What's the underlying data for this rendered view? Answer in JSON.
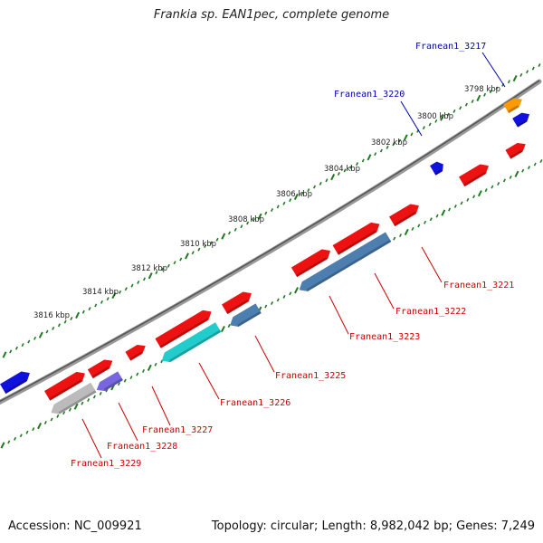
{
  "header": {
    "title": "Frankia sp. EAN1pec, complete genome"
  },
  "footer": {
    "accession": "Accession: NC_009921",
    "topology": "Topology: circular; Length: 8,982,042 bp; Genes: 7,249"
  },
  "colors": {
    "backbone": "#888888",
    "tick": "#1f7a1f",
    "label_red": "#cc0000",
    "label_blue": "#0000bb",
    "gene_red": "#ee1111",
    "gene_blue": "#1111dd",
    "gene_orange": "#ff9900",
    "gene_cyan": "#22cccc",
    "gene_steel": "#4d7eb0",
    "gene_gray": "#bbbbbb",
    "gene_purple": "#7766dd"
  },
  "scale": {
    "unit": "kbp",
    "ticks": [
      "3798 kbp",
      "3800 kbp",
      "3802 kbp",
      "3804 kbp",
      "3806 kbp",
      "3808 kbp",
      "3810 kbp",
      "3812 kbp",
      "3814 kbp",
      "3816 kbp"
    ]
  },
  "genes": [
    {
      "name": "",
      "color": "gene_blue",
      "strand": "forward",
      "track": "outer"
    },
    {
      "name": "Franean1_3229",
      "color": "gene_red",
      "strand": "forward",
      "track": "inner"
    },
    {
      "name": "Franean1_3229",
      "color": "gene_gray",
      "strand": "reverse",
      "track": "inner2",
      "labeled": true
    },
    {
      "name": "",
      "color": "gene_red",
      "strand": "forward",
      "track": "inner"
    },
    {
      "name": "Franean1_3228",
      "color": "gene_purple",
      "strand": "reverse",
      "track": "inner2",
      "labeled": true
    },
    {
      "name": "Franean1_3227",
      "color": "gene_red",
      "strand": "forward",
      "track": "inner",
      "labeled": true
    },
    {
      "name": "",
      "color": "gene_red",
      "strand": "forward",
      "track": "inner"
    },
    {
      "name": "Franean1_3226",
      "color": "gene_cyan",
      "strand": "reverse",
      "track": "inner2",
      "labeled": true
    },
    {
      "name": "",
      "color": "gene_red",
      "strand": "forward",
      "track": "inner"
    },
    {
      "name": "Franean1_3225",
      "color": "gene_steel",
      "strand": "reverse",
      "track": "inner2",
      "labeled": true
    },
    {
      "name": "",
      "color": "gene_red",
      "strand": "forward",
      "track": "inner"
    },
    {
      "name": "",
      "color": "gene_red",
      "strand": "forward",
      "track": "inner"
    },
    {
      "name": "Franean1_3223",
      "color": "gene_steel",
      "strand": "reverse",
      "track": "inner2",
      "labeled": true
    },
    {
      "name": "Franean1_3222",
      "color": "gene_red",
      "strand": "forward",
      "track": "inner",
      "labeled": true
    },
    {
      "name": "Franean1_3221",
      "color": "gene_red",
      "strand": "forward",
      "track": "inner",
      "labeled": true
    },
    {
      "name": "Franean1_3220",
      "color": "gene_blue",
      "strand": "forward",
      "track": "outer",
      "labeled": true
    },
    {
      "name": "",
      "color": "gene_red",
      "strand": "forward",
      "track": "inner"
    },
    {
      "name": "Franean1_3217",
      "color": "gene_orange",
      "strand": "forward",
      "track": "outer",
      "labeled": true
    },
    {
      "name": "",
      "color": "gene_blue",
      "strand": "forward",
      "track": "outer"
    }
  ],
  "labels": [
    {
      "text": "Franean1_3217",
      "color": "label_blue"
    },
    {
      "text": "Franean1_3220",
      "color": "label_blue"
    },
    {
      "text": "Franean1_3221",
      "color": "label_red"
    },
    {
      "text": "Franean1_3222",
      "color": "label_red"
    },
    {
      "text": "Franean1_3223",
      "color": "label_red"
    },
    {
      "text": "Franean1_3225",
      "color": "label_red"
    },
    {
      "text": "Franean1_3226",
      "color": "label_red"
    },
    {
      "text": "Franean1_3227",
      "color": "label_red"
    },
    {
      "text": "Franean1_3228",
      "color": "label_red"
    },
    {
      "text": "Franean1_3229",
      "color": "label_red"
    }
  ]
}
